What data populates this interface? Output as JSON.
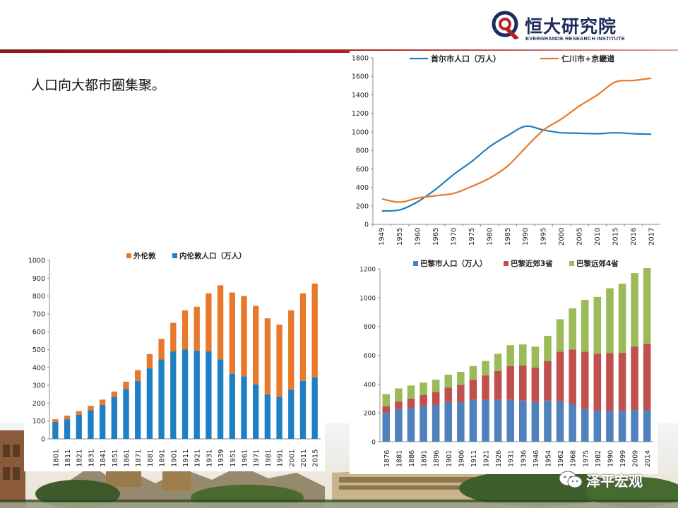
{
  "header": {
    "logo_title": "恒大研究院",
    "logo_subtitle": "EVERGRANDE RESEARCH INSTITUTE",
    "brand_color": "#1f2c5c",
    "accent_color": "#b22222"
  },
  "slide": {
    "headline": "人口向大都市圈集聚。"
  },
  "watermark": {
    "text": "泽平宏观",
    "icon": "wechat-icon"
  },
  "chart_data": [
    {
      "id": "seoul",
      "type": "line",
      "x": [
        "1949",
        "1955",
        "1960",
        "1965",
        "1970",
        "1975",
        "1980",
        "1985",
        "1990",
        "1995",
        "2000",
        "2005",
        "2010",
        "2015",
        "2016",
        "2017"
      ],
      "ylim": [
        0,
        1800
      ],
      "yticks": [
        0,
        200,
        400,
        600,
        800,
        1000,
        1200,
        1400,
        1600,
        1800
      ],
      "legend_position": "top",
      "series": [
        {
          "name": "首尔市人口（万人）",
          "color": "#1f7fbf",
          "values": [
            145,
            157,
            245,
            380,
            540,
            680,
            840,
            960,
            1060,
            1020,
            990,
            985,
            980,
            990,
            980,
            975
          ]
        },
        {
          "name": "仁川市+京畿道",
          "color": "#e8782a",
          "values": [
            275,
            240,
            285,
            310,
            335,
            410,
            500,
            630,
            830,
            1020,
            1140,
            1280,
            1400,
            1540,
            1555,
            1580
          ]
        }
      ]
    },
    {
      "id": "london",
      "type": "bar",
      "stacked": true,
      "categories": [
        "1801",
        "1811",
        "1821",
        "1831",
        "1841",
        "1851",
        "1861",
        "1871",
        "1881",
        "1891",
        "1901",
        "1911",
        "1921",
        "1931",
        "1939",
        "1951",
        "1961",
        "1971",
        "1981",
        "1991",
        "2001",
        "2011",
        "2015"
      ],
      "ylim": [
        0,
        1000
      ],
      "yticks": [
        0,
        100,
        200,
        300,
        400,
        500,
        600,
        700,
        800,
        900,
        1000
      ],
      "legend_position": "top",
      "series": [
        {
          "name": "内伦敦人口（万人）",
          "color": "#1f7fc5",
          "values": [
            95,
            110,
            135,
            160,
            190,
            235,
            280,
            325,
            395,
            445,
            490,
            500,
            495,
            490,
            445,
            365,
            350,
            305,
            250,
            235,
            275,
            325,
            345
          ]
        },
        {
          "name": "外伦敦",
          "color": "#e8782a",
          "values": [
            15,
            20,
            20,
            25,
            30,
            30,
            40,
            60,
            80,
            115,
            160,
            220,
            245,
            325,
            415,
            455,
            450,
            440,
            425,
            405,
            445,
            490,
            525
          ]
        }
      ],
      "legend_order": [
        "外伦敦",
        "内伦敦人口（万人）"
      ]
    },
    {
      "id": "paris",
      "type": "bar",
      "stacked": true,
      "categories": [
        "1876",
        "1881",
        "1886",
        "1891",
        "1896",
        "1901",
        "1906",
        "1911",
        "1921",
        "1926",
        "1931",
        "1936",
        "1946",
        "1954",
        "1962",
        "1968",
        "1975",
        "1982",
        "1990",
        "1999",
        "2009",
        "2014"
      ],
      "ylim": [
        0,
        1200
      ],
      "yticks": [
        0,
        200,
        400,
        600,
        800,
        1000,
        1200
      ],
      "legend_position": "top",
      "series": [
        {
          "name": "巴黎市人口（万人）",
          "color": "#4f81bd",
          "values": [
            200,
            225,
            235,
            245,
            255,
            275,
            275,
            290,
            290,
            290,
            290,
            285,
            275,
            285,
            280,
            260,
            225,
            215,
            215,
            212,
            220,
            220
          ]
        },
        {
          "name": "巴黎近郊3省",
          "color": "#c0504d",
          "values": [
            45,
            55,
            65,
            80,
            90,
            100,
            120,
            140,
            170,
            200,
            235,
            245,
            240,
            275,
            345,
            380,
            400,
            395,
            400,
            405,
            440,
            460
          ]
        },
        {
          "name": "巴黎远郊4省",
          "color": "#9bbb59",
          "values": [
            85,
            90,
            90,
            85,
            85,
            90,
            90,
            95,
            100,
            120,
            145,
            145,
            145,
            175,
            225,
            285,
            360,
            395,
            450,
            480,
            510,
            525
          ]
        }
      ]
    }
  ]
}
